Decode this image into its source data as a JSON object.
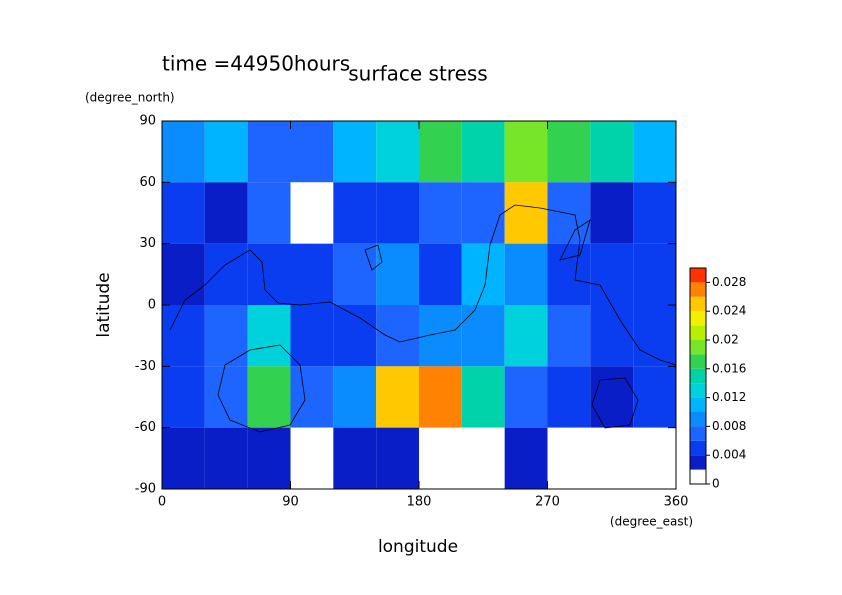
{
  "chart_data": {
    "type": "contour",
    "title": "surface stress",
    "subtitle": "time =44950hours",
    "x_label": "longitude",
    "x_unit": "(degree_east)",
    "y_label": "latitude",
    "y_unit": "(degree_north)",
    "xlim": [
      0,
      360
    ],
    "xticks": [
      0,
      90,
      180,
      270,
      360
    ],
    "ylim": [
      -90,
      90
    ],
    "yticks": [
      -90,
      -60,
      -30,
      0,
      30,
      60,
      90
    ],
    "x": [
      15,
      45,
      75,
      105,
      135,
      165,
      195,
      225,
      255,
      285,
      315,
      345
    ],
    "y": [
      75,
      45,
      15,
      -15,
      -45,
      -75
    ],
    "z": [
      [
        0.008,
        0.01,
        0.006,
        0.006,
        0.01,
        0.012,
        0.016,
        0.014,
        0.018,
        0.016,
        0.014,
        0.01
      ],
      [
        0.004,
        0.002,
        0.006,
        0.001,
        0.004,
        0.004,
        0.006,
        0.006,
        0.024,
        0.006,
        0.002,
        0.004
      ],
      [
        0.002,
        0.004,
        0.004,
        0.004,
        0.006,
        0.008,
        0.004,
        0.01,
        0.008,
        0.004,
        0.004,
        0.004
      ],
      [
        0.004,
        0.006,
        0.012,
        0.004,
        0.004,
        0.006,
        0.008,
        0.008,
        0.012,
        0.006,
        0.004,
        0.004
      ],
      [
        0.004,
        0.006,
        0.016,
        0.006,
        0.008,
        0.024,
        0.026,
        0.014,
        0.006,
        0.004,
        0.002,
        0.004
      ],
      [
        0.002,
        0.002,
        0.002,
        0.001,
        0.002,
        0.002,
        0.001,
        0.001,
        0.002,
        0.001,
        0.001,
        0.001
      ]
    ],
    "levels": [
      0,
      0.002,
      0.004,
      0.006,
      0.008,
      0.01,
      0.012,
      0.014,
      0.016,
      0.018,
      0.02,
      0.022,
      0.024,
      0.026,
      0.028,
      0.03
    ],
    "colors": [
      "#ffffff",
      "#0a1ec8",
      "#0a3cf0",
      "#1e64ff",
      "#0a8cff",
      "#00b4ff",
      "#00d2dc",
      "#00d2aa",
      "#32d250",
      "#78e628",
      "#b4f000",
      "#f0f000",
      "#ffc800",
      "#ff8200",
      "#ff3200"
    ],
    "colorbar_ticks": [
      0,
      0.004,
      0.008,
      0.012,
      0.016,
      0.02,
      0.024,
      0.028
    ]
  }
}
